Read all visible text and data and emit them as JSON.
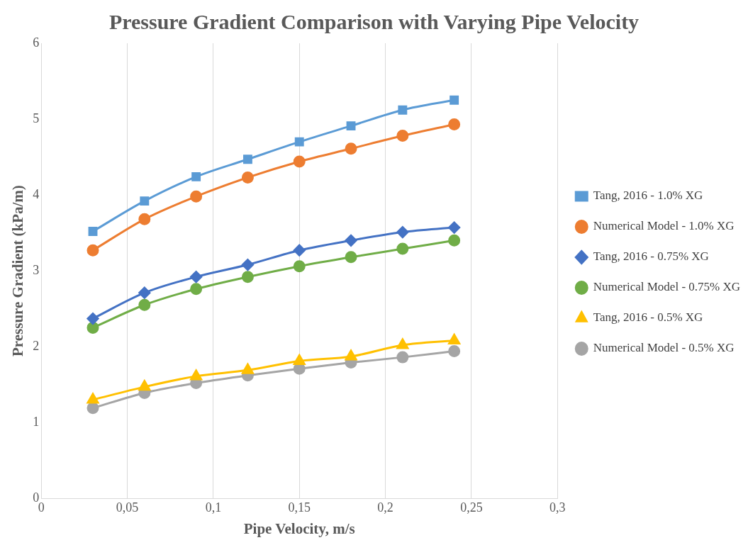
{
  "chart_data": {
    "type": "line",
    "title": "Pressure Gradient Comparison with Varying Pipe Velocity",
    "xlabel": "Pipe Velocity, m/s",
    "ylabel": "Pressure Gradient (kPa/m)",
    "x": [
      0.03,
      0.06,
      0.09,
      0.12,
      0.15,
      0.18,
      0.21,
      0.24
    ],
    "series": [
      {
        "name": "Tang, 2016 - 1.0% XG",
        "color": "#5b9bd5",
        "marker": "square",
        "values": [
          3.52,
          3.92,
          4.24,
          4.47,
          4.7,
          4.91,
          5.12,
          5.25
        ]
      },
      {
        "name": "Numerical Model - 1.0% XG",
        "color": "#ed7d31",
        "marker": "circle",
        "values": [
          3.27,
          3.68,
          3.98,
          4.23,
          4.44,
          4.61,
          4.78,
          4.93
        ]
      },
      {
        "name": "Tang, 2016 - 0.75% XG",
        "color": "#4472c4",
        "marker": "diamond",
        "values": [
          2.37,
          2.71,
          2.92,
          3.08,
          3.27,
          3.4,
          3.51,
          3.57
        ]
      },
      {
        "name": "Numerical Model - 0.75% XG",
        "color": "#70ad47",
        "marker": "circle",
        "values": [
          2.25,
          2.55,
          2.76,
          2.92,
          3.06,
          3.18,
          3.29,
          3.4
        ]
      },
      {
        "name": "Tang, 2016 - 0.5% XG",
        "color": "#ffc000",
        "marker": "triangle",
        "values": [
          1.3,
          1.47,
          1.61,
          1.69,
          1.81,
          1.87,
          2.02,
          2.08
        ]
      },
      {
        "name": "Numerical Model - 0.5% XG",
        "color": "#a5a5a5",
        "marker": "circle",
        "values": [
          1.19,
          1.39,
          1.52,
          1.62,
          1.71,
          1.79,
          1.86,
          1.94
        ]
      }
    ],
    "xlim": [
      0,
      0.3
    ],
    "xticks": [
      0,
      {
        "value": 0.05,
        "label": "0,05"
      },
      {
        "value": 0.1,
        "label": "0,1"
      },
      {
        "value": 0.15,
        "label": "0,15"
      },
      {
        "value": 0.2,
        "label": "0,2"
      },
      {
        "value": 0.25,
        "label": "0,25"
      },
      {
        "value": 0.3,
        "label": "0,3"
      }
    ],
    "ylim": [
      0,
      6
    ],
    "yticks": [
      0,
      1,
      2,
      3,
      4,
      5,
      6
    ],
    "grid": "x",
    "legend": "right"
  }
}
